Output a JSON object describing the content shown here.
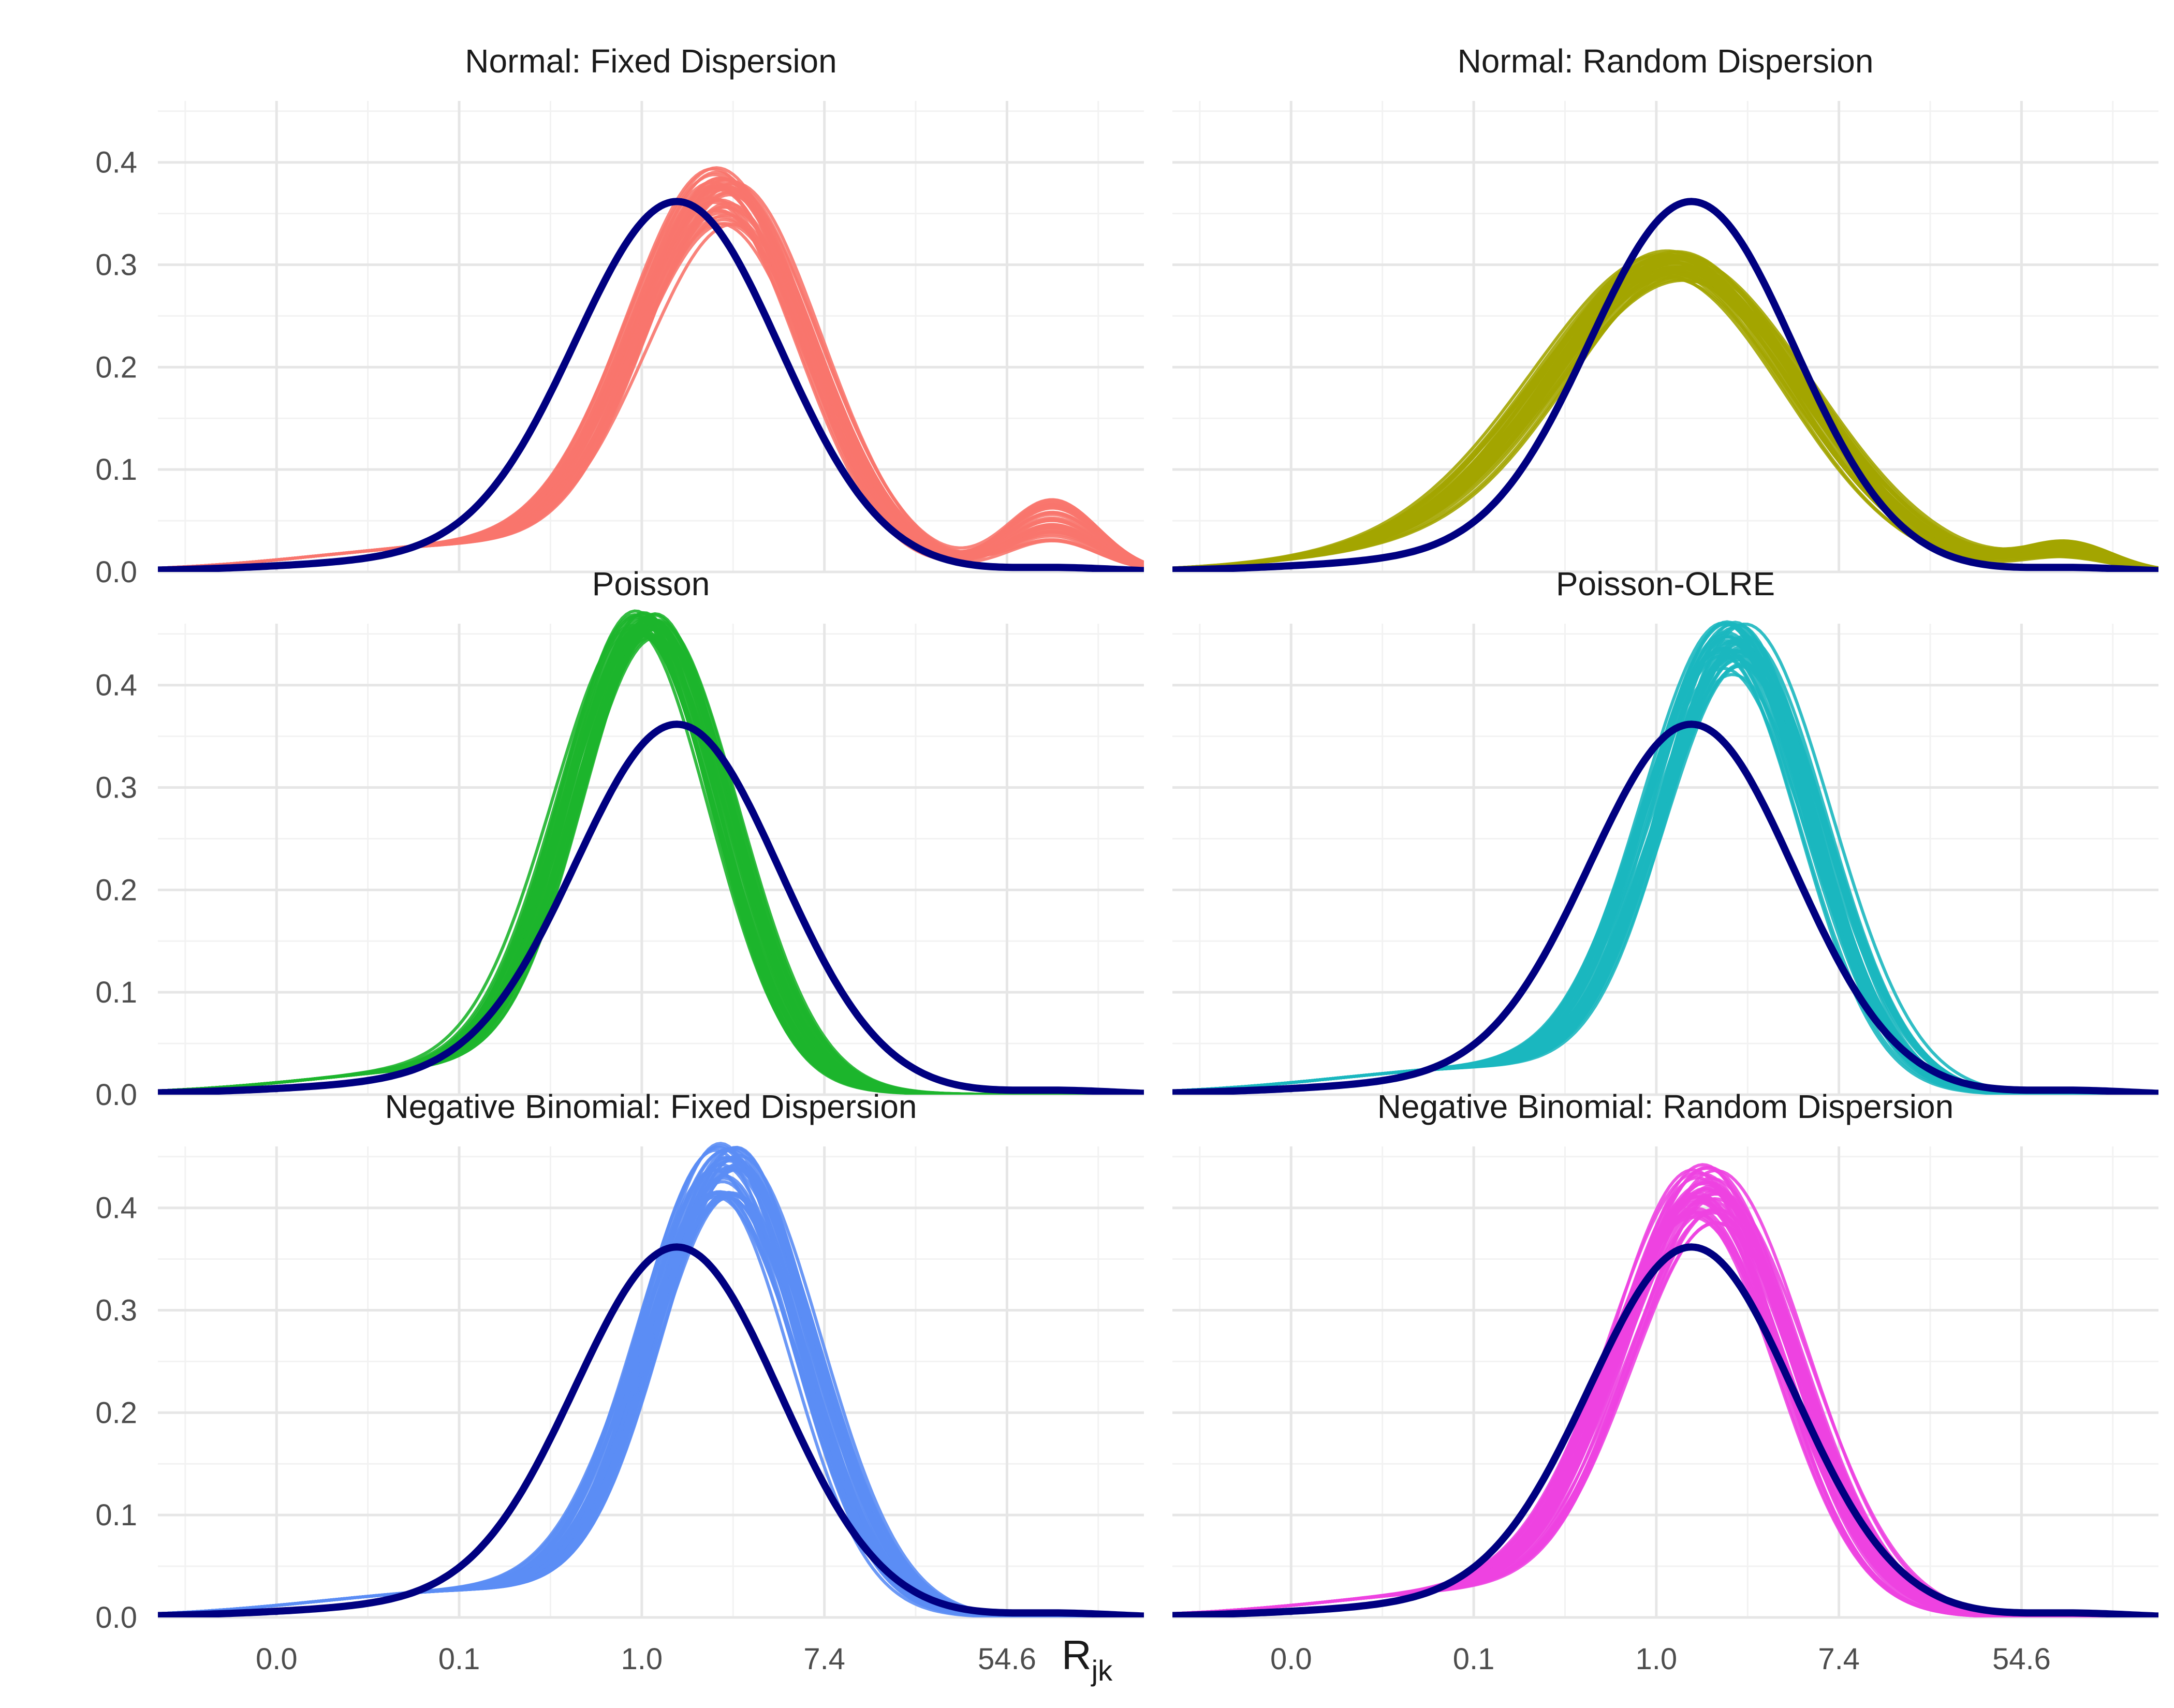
{
  "colors": {
    "observed": "#000080",
    "grid_major": "#e6e6e6",
    "grid_minor": "#f2f2f2"
  },
  "axes": {
    "xlabel_main": "R",
    "xlabel_sub": "jk",
    "x_tick_labels": [
      "0.0",
      "0.1",
      "1.0",
      "7.4",
      "54.6"
    ],
    "x_tick_log_values": [
      -4,
      -2,
      0,
      2,
      4
    ],
    "x_range_log": [
      -5.3,
      5.5
    ],
    "y_tick_labels": [
      "0.0",
      "0.1",
      "0.2",
      "0.3",
      "0.4"
    ],
    "y_tick_values": [
      0,
      0.1,
      0.2,
      0.3,
      0.4
    ],
    "y_range": [
      0,
      0.46
    ]
  },
  "chart_data": [
    {
      "type": "line",
      "title": "Normal: Fixed Dispersion",
      "color": "#F8766D",
      "x_scale": "log",
      "observed": {
        "mu": 0.4,
        "sd": 1.12,
        "tail_mu": -1.7,
        "tail_sd": 1.8,
        "tail_w": 0.15,
        "peak": 0.355
      },
      "replicates": {
        "mu": 0.9,
        "sd": 0.95,
        "peak_min": 0.33,
        "peak_max": 0.385,
        "bump_x": 4.5,
        "bump_peak": 0.05
      }
    },
    {
      "type": "line",
      "title": "Normal: Random Dispersion",
      "color": "#A3A500",
      "x_scale": "log",
      "observed": {
        "mu": 0.4,
        "sd": 1.12,
        "tail_mu": -1.7,
        "tail_sd": 1.8,
        "tail_w": 0.15,
        "peak": 0.355
      },
      "replicates": {
        "mu": 0.25,
        "sd": 1.35,
        "peak_min": 0.27,
        "peak_max": 0.3,
        "bump_x": 4.5,
        "bump_peak": 0.02
      }
    },
    {
      "type": "line",
      "title": "Poisson",
      "color": "#1DB52C",
      "x_scale": "log",
      "observed": {
        "mu": 0.4,
        "sd": 1.12,
        "tail_mu": -1.7,
        "tail_sd": 1.8,
        "tail_w": 0.15,
        "peak": 0.355
      },
      "replicates": {
        "mu": 0.05,
        "sd": 0.85,
        "peak_min": 0.43,
        "peak_max": 0.455,
        "bump_x": 4.5,
        "bump_peak": 0.0
      }
    },
    {
      "type": "line",
      "title": "Poisson-OLRE",
      "color": "#1BB7BF",
      "x_scale": "log",
      "observed": {
        "mu": 0.4,
        "sd": 1.12,
        "tail_mu": -1.7,
        "tail_sd": 1.8,
        "tail_w": 0.15,
        "peak": 0.355
      },
      "replicates": {
        "mu": 0.85,
        "sd": 0.88,
        "peak_min": 0.4,
        "peak_max": 0.455,
        "bump_x": 4.5,
        "bump_peak": 0.0
      }
    },
    {
      "type": "line",
      "title": "Negative Binomial: Fixed Dispersion",
      "color": "#5B8DF5",
      "x_scale": "log",
      "observed": {
        "mu": 0.4,
        "sd": 1.12,
        "tail_mu": -1.7,
        "tail_sd": 1.8,
        "tail_w": 0.15,
        "peak": 0.355
      },
      "replicates": {
        "mu": 0.95,
        "sd": 0.87,
        "peak_min": 0.4,
        "peak_max": 0.455,
        "bump_x": 4.5,
        "bump_peak": 0.0
      }
    },
    {
      "type": "line",
      "title": "Negative Binomial: Random Dispersion",
      "color": "#ED42E1",
      "x_scale": "log",
      "observed": {
        "mu": 0.4,
        "sd": 1.12,
        "tail_mu": -1.7,
        "tail_sd": 1.8,
        "tail_w": 0.15,
        "peak": 0.355
      },
      "replicates": {
        "mu": 0.55,
        "sd": 0.95,
        "peak_min": 0.37,
        "peak_max": 0.43,
        "bump_x": 4.5,
        "bump_peak": 0.0
      }
    }
  ]
}
